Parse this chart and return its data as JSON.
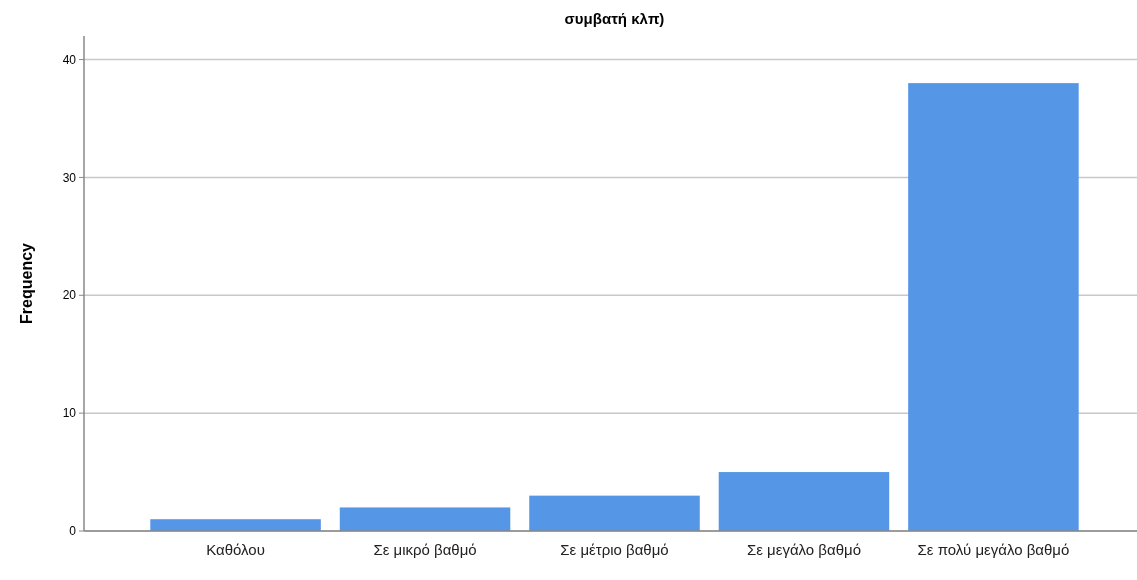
{
  "chart_data": {
    "type": "bar",
    "title": "συμβατή κλπ)",
    "ylabel": "Frequency",
    "categories": [
      "Καθόλου",
      "Σε μικρό βαθμό",
      "Σε μέτριο βαθμό",
      "Σε μεγάλο βαθμό",
      "Σε πολύ μεγάλο βαθμό"
    ],
    "values": [
      1,
      2,
      3,
      5,
      38
    ],
    "color": "#5596e6",
    "ylim": [
      0,
      42
    ],
    "yticks": [
      0,
      10,
      20,
      30,
      40
    ],
    "grid": "y"
  }
}
